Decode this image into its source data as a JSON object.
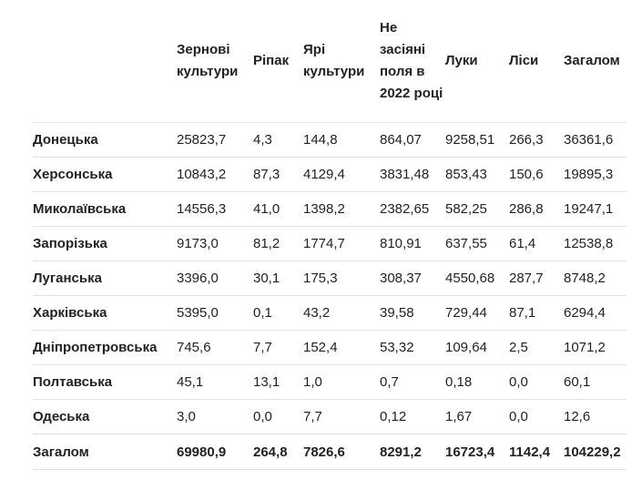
{
  "table": {
    "headers": [
      "",
      "Зернові культури",
      "Ріпак",
      "Ярі культури",
      "Не засіяні поля в 2022 році",
      "Луки",
      "Ліси",
      "Загалом"
    ],
    "rows": [
      [
        "Донецька",
        "25823,7",
        "4,3",
        "144,8",
        "864,07",
        "9258,51",
        "266,3",
        "36361,6"
      ],
      [
        "Херсонська",
        "10843,2",
        "87,3",
        "4129,4",
        "3831,48",
        "853,43",
        "150,6",
        "19895,3"
      ],
      [
        "Миколаївська",
        "14556,3",
        "41,0",
        "1398,2",
        "2382,65",
        "582,25",
        "286,8",
        "19247,1"
      ],
      [
        "Запорізька",
        "9173,0",
        "81,2",
        "1774,7",
        "810,91",
        "637,55",
        "61,4",
        "12538,8"
      ],
      [
        "Луганська",
        "3396,0",
        "30,1",
        "175,3",
        "308,37",
        "4550,68",
        "287,7",
        "8748,2"
      ],
      [
        "Харківська",
        "5395,0",
        "0,1",
        "43,2",
        "39,58",
        "729,44",
        "87,1",
        "6294,4"
      ],
      [
        "Дніпропетровська",
        "745,6",
        "7,7",
        "152,4",
        "53,32",
        "109,64",
        "2,5",
        "1071,2"
      ],
      [
        "Полтавська",
        "45,1",
        "13,1",
        "1,0",
        "0,7",
        "0,18",
        "0,0",
        "60,1"
      ],
      [
        "Одеська",
        "3,0",
        "0,0",
        "7,7",
        "0,12",
        "1,67",
        "0,0",
        "12,6"
      ]
    ],
    "total": [
      "Загалом",
      "69980,9",
      "264,8",
      "7826,6",
      "8291,2",
      "16723,4",
      "1142,4",
      "104229,2"
    ]
  }
}
